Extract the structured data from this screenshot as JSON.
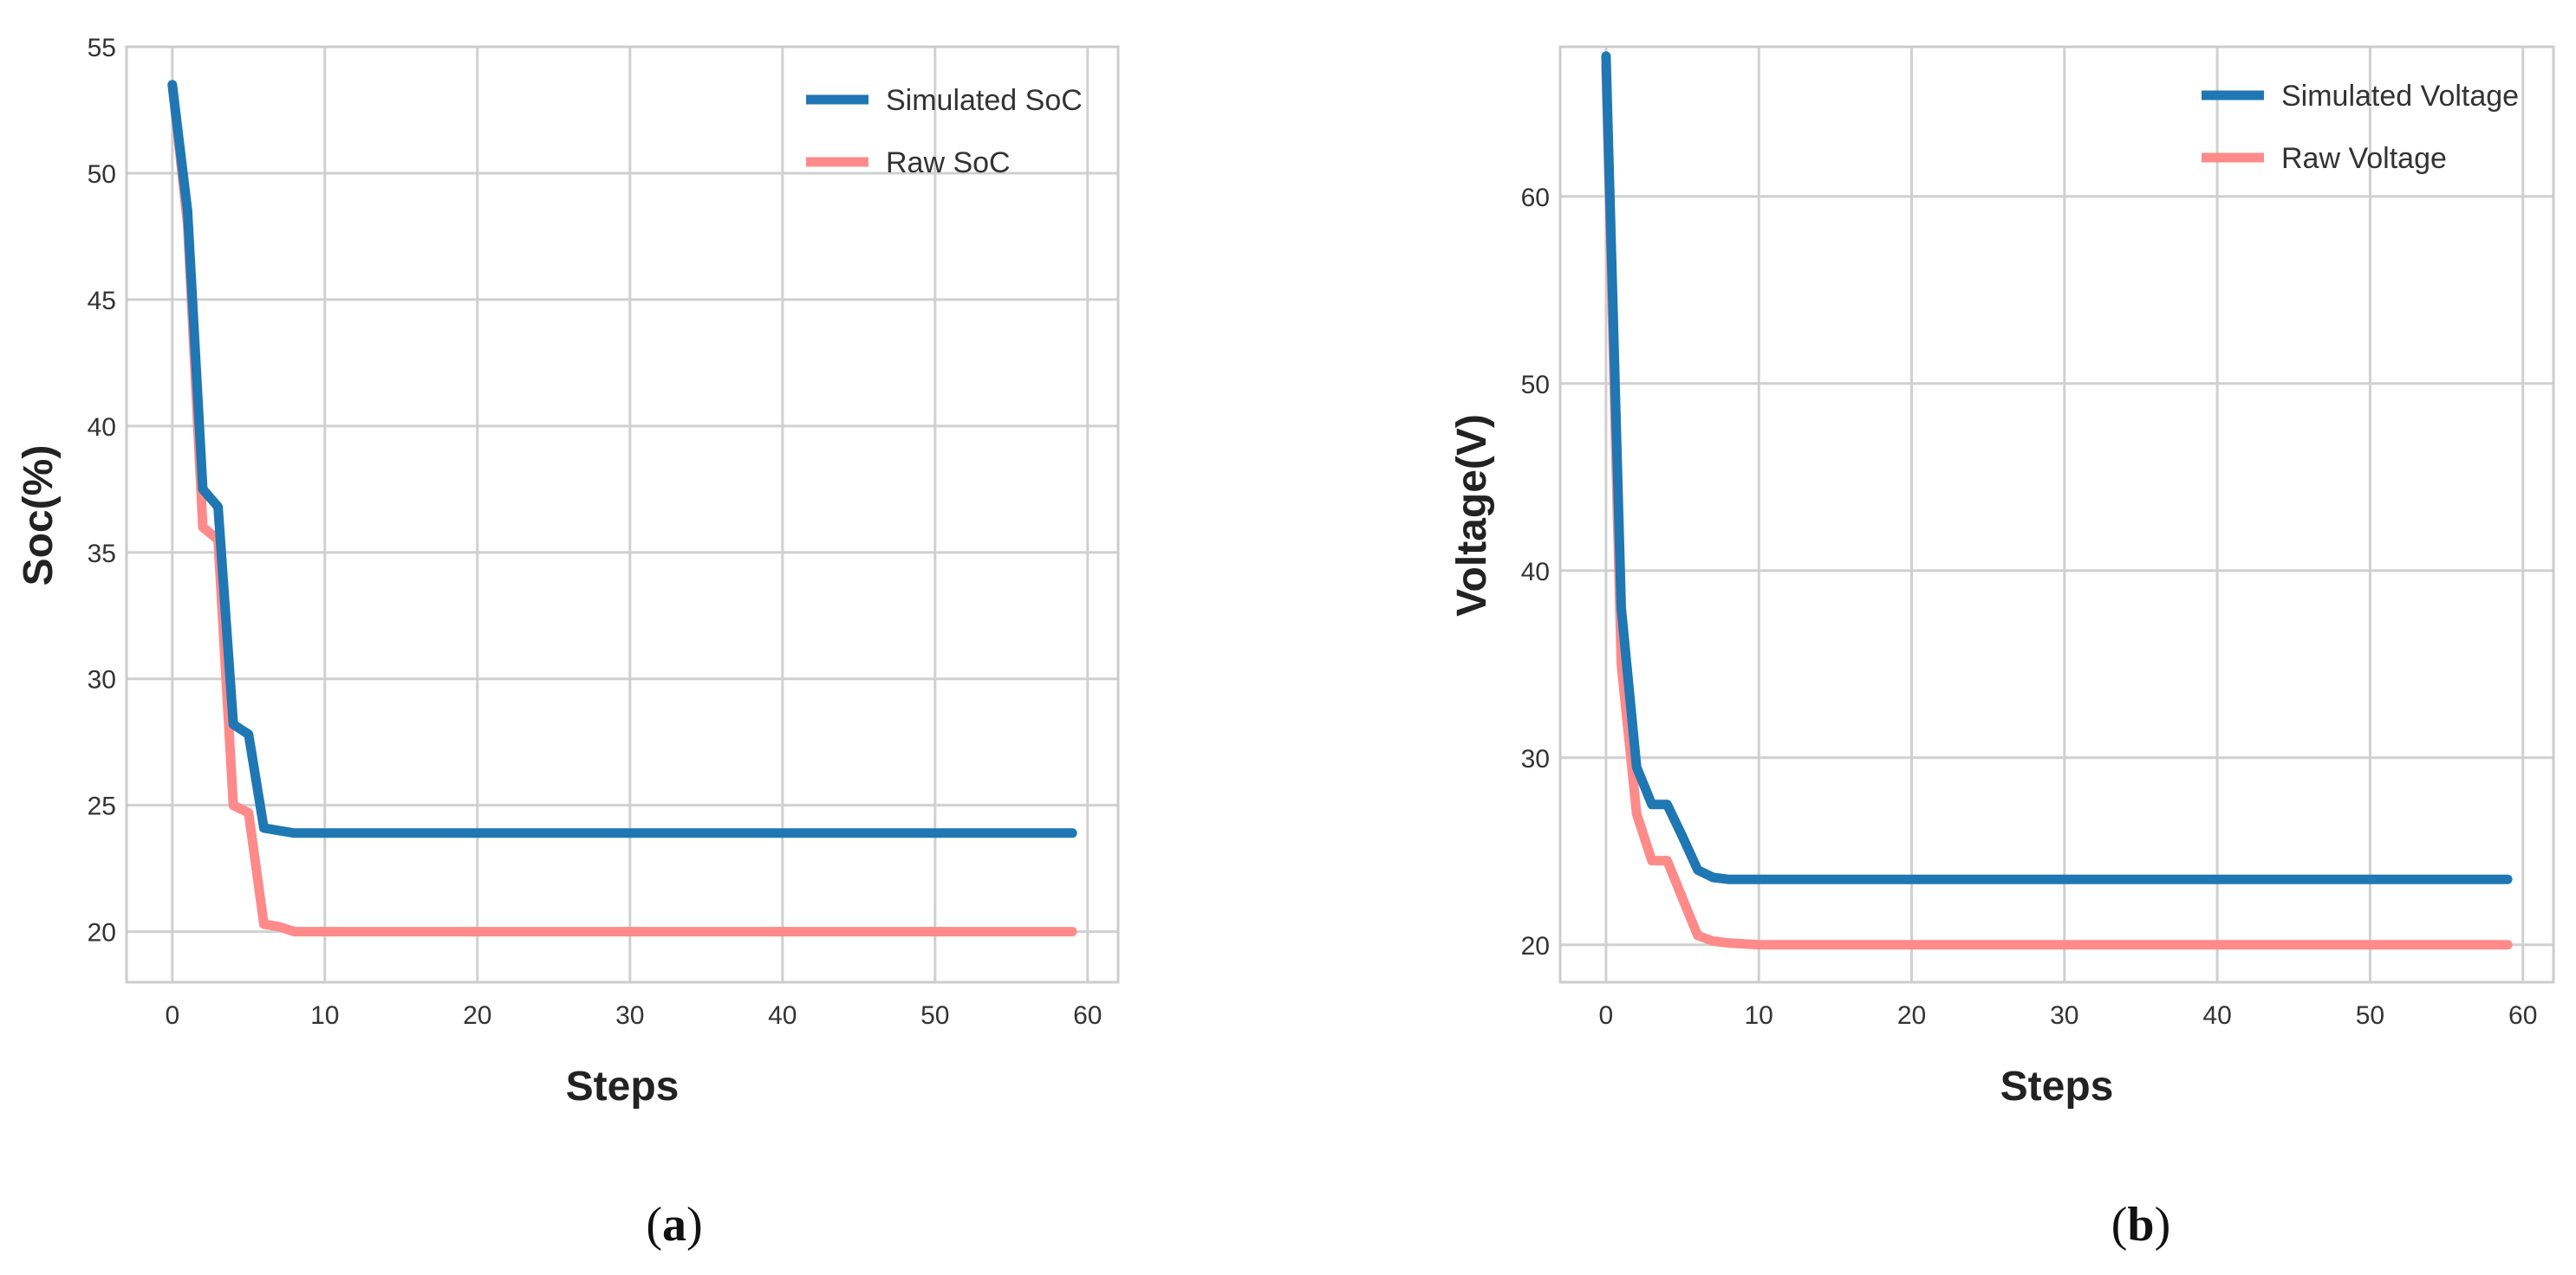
{
  "chart_data": [
    {
      "id": "a",
      "type": "line",
      "caption": "(a)",
      "caption_parts": {
        "open": "(",
        "letter": "a",
        "close": ")"
      },
      "title": "",
      "xlabel": "Steps",
      "ylabel": "Soc(%)",
      "xlim": [
        -3,
        62
      ],
      "ylim": [
        18,
        55
      ],
      "xticks": [
        0,
        10,
        20,
        30,
        40,
        50,
        60
      ],
      "yticks": [
        20,
        25,
        30,
        35,
        40,
        45,
        50,
        55
      ],
      "grid": true,
      "legend_position": "top-right",
      "series": [
        {
          "name": "Simulated SoC",
          "color": "#1f77b4",
          "x": [
            0,
            1,
            2,
            3,
            4,
            5,
            6,
            7,
            8,
            10,
            20,
            30,
            40,
            50,
            59
          ],
          "y": [
            53.5,
            48.5,
            37.5,
            36.8,
            28.2,
            27.8,
            24.1,
            24.0,
            23.9,
            23.9,
            23.9,
            23.9,
            23.9,
            23.9,
            23.9
          ]
        },
        {
          "name": "Raw SoC",
          "color": "#ff8a8a",
          "x": [
            0,
            1,
            2,
            3,
            4,
            5,
            6,
            7,
            8,
            10,
            20,
            30,
            40,
            50,
            59
          ],
          "y": [
            53.5,
            48.0,
            36.0,
            35.5,
            25.0,
            24.7,
            20.3,
            20.2,
            20.0,
            20.0,
            20.0,
            20.0,
            20.0,
            20.0,
            20.0
          ]
        }
      ]
    },
    {
      "id": "b",
      "type": "line",
      "caption": "(b)",
      "caption_parts": {
        "open": "(",
        "letter": "b",
        "close": ")"
      },
      "title": "",
      "xlabel": "Steps",
      "ylabel": "Voltage(V)",
      "xlim": [
        -3,
        62
      ],
      "ylim": [
        18,
        68
      ],
      "xticks": [
        0,
        10,
        20,
        30,
        40,
        50,
        60
      ],
      "yticks": [
        20,
        30,
        40,
        50,
        60
      ],
      "grid": true,
      "legend_position": "top-right",
      "series": [
        {
          "name": "Simulated Voltage",
          "color": "#1f77b4",
          "x": [
            0,
            1,
            2,
            3,
            4,
            5,
            6,
            7,
            8,
            10,
            20,
            30,
            40,
            50,
            59
          ],
          "y": [
            67.5,
            38.0,
            29.5,
            27.5,
            27.5,
            25.8,
            24.0,
            23.6,
            23.5,
            23.5,
            23.5,
            23.5,
            23.5,
            23.5,
            23.5
          ]
        },
        {
          "name": "Raw Voltage",
          "color": "#ff8a8a",
          "x": [
            0,
            1,
            2,
            3,
            4,
            5,
            6,
            7,
            8,
            10,
            20,
            30,
            40,
            50,
            59
          ],
          "y": [
            67.0,
            35.0,
            27.0,
            24.5,
            24.5,
            22.5,
            20.5,
            20.2,
            20.1,
            20.0,
            20.0,
            20.0,
            20.0,
            20.0,
            20.0
          ]
        }
      ]
    }
  ]
}
